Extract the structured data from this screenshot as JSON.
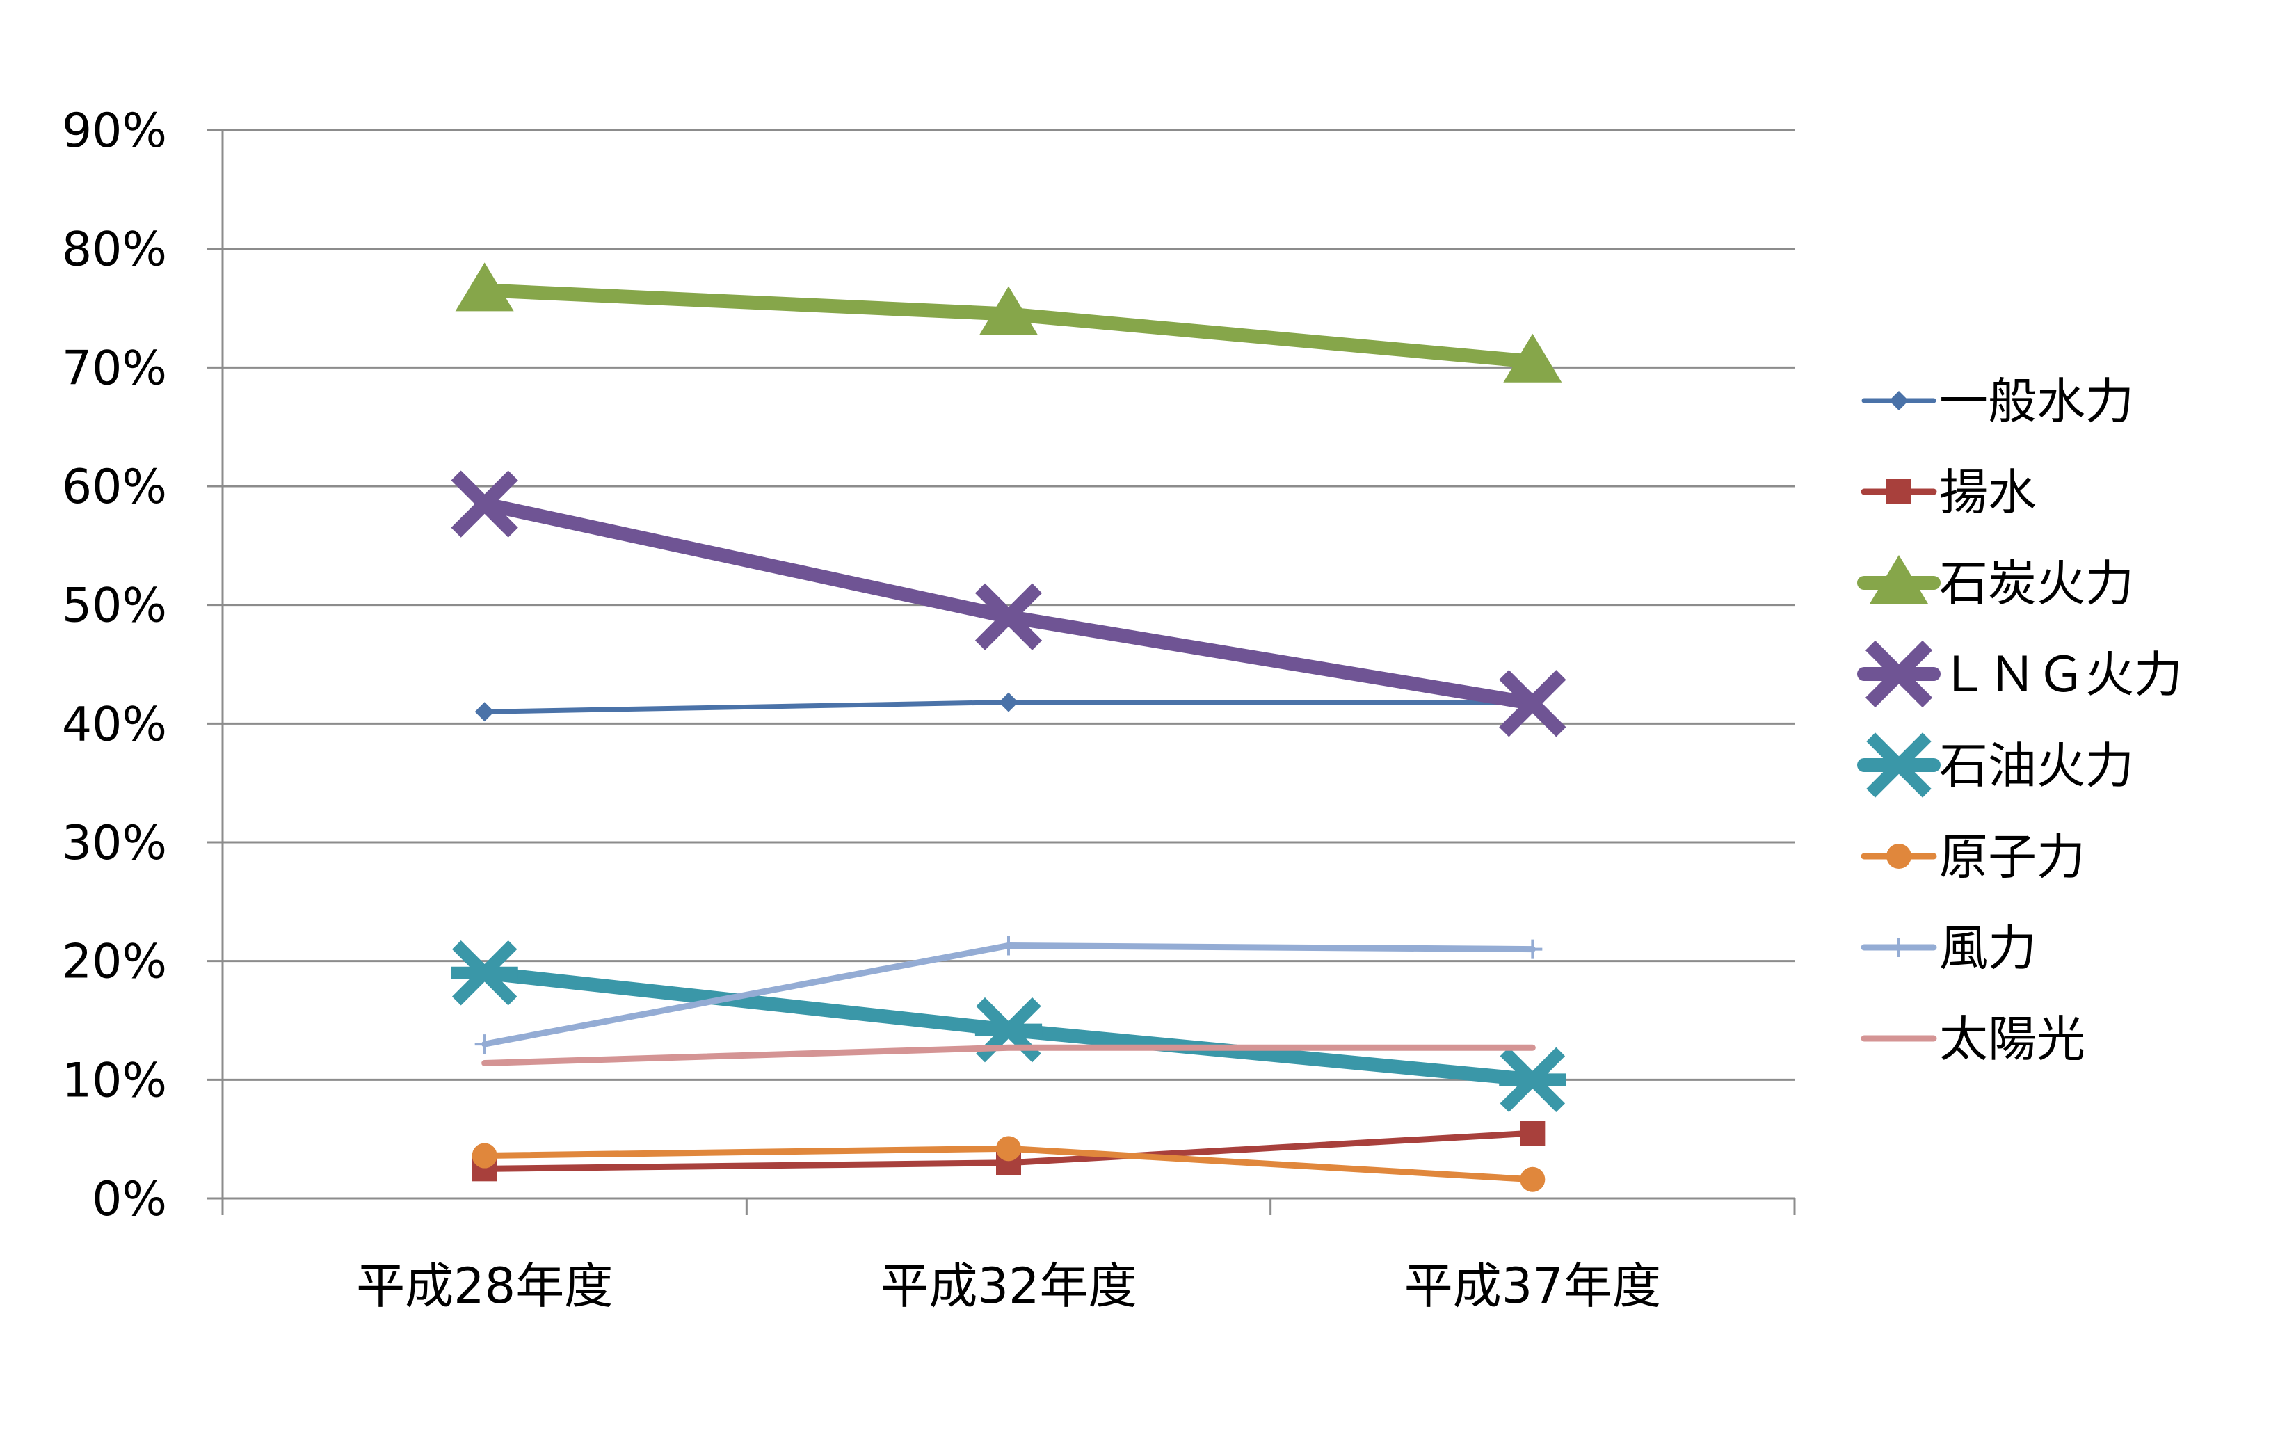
{
  "chart_data": {
    "type": "line",
    "title": "",
    "xlabel": "",
    "ylabel": "",
    "categories": [
      "平成28年度",
      "平成32年度",
      "平成37年度"
    ],
    "y_ticks": [
      "0%",
      "10%",
      "20%",
      "30%",
      "40%",
      "50%",
      "60%",
      "70%",
      "80%",
      "90%"
    ],
    "ylim": [
      0,
      90
    ],
    "grid": true,
    "legend_position": "right",
    "series": [
      {
        "name": "一般水力",
        "values": [
          41,
          41.8,
          41.8
        ],
        "color": "#4a72a8",
        "marker": "diamond",
        "weight": "thin"
      },
      {
        "name": "揚水",
        "values": [
          2.5,
          3,
          5.5
        ],
        "color": "#a8403c",
        "marker": "square",
        "weight": "medium"
      },
      {
        "name": "石炭火力",
        "values": [
          76.5,
          74.5,
          70.5
        ],
        "color": "#86a64a",
        "marker": "triangle",
        "weight": "thick"
      },
      {
        "name": "ＬＮＧ火力",
        "values": [
          58.5,
          49,
          41.7
        ],
        "color": "#6f5494",
        "marker": "x",
        "weight": "thick"
      },
      {
        "name": "石油火力",
        "values": [
          19,
          14.2,
          10
        ],
        "color": "#3a97a8",
        "marker": "star",
        "weight": "thick"
      },
      {
        "name": "原子力",
        "values": [
          3.6,
          4.2,
          1.6
        ],
        "color": "#e0873c",
        "marker": "circle",
        "weight": "medium"
      },
      {
        "name": "風力",
        "values": [
          13,
          21.3,
          21
        ],
        "color": "#94acd4",
        "marker": "plus",
        "weight": "medium"
      },
      {
        "name": "太陽光",
        "values": [
          11.4,
          12.7,
          12.7
        ],
        "color": "#d49494",
        "marker": "none",
        "weight": "medium"
      }
    ]
  }
}
